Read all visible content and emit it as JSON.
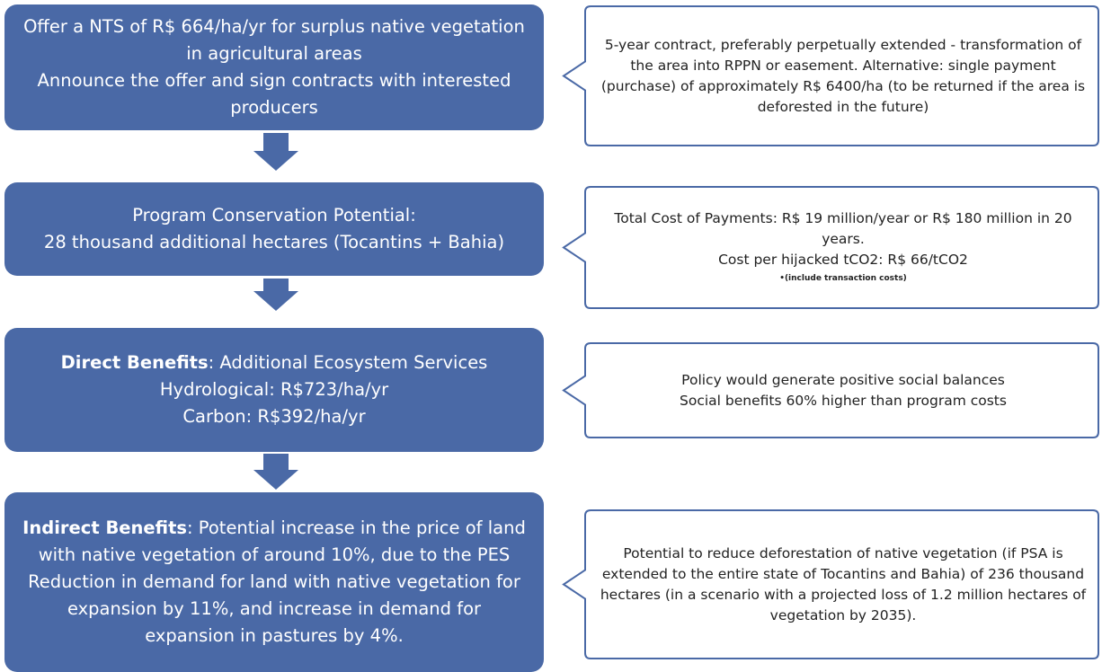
{
  "steps": [
    {
      "lines": [
        "Offer a NTS of R$ 664/ha/yr for surplus native vegetation in agricultural areas",
        "Announce the offer and sign contracts with interested producers"
      ]
    },
    {
      "lines": [
        "Program Conservation Potential:",
        "28 thousand additional hectares (Tocantins + Bahia)"
      ]
    },
    {
      "lines": [
        {
          "label": "Direct Benefits",
          "text": ": Additional Ecosystem Services"
        },
        "Hydrological: R$723/ha/yr",
        "Carbon: R$392/ha/yr"
      ]
    },
    {
      "lines": [
        {
          "label": "Indirect Benefits",
          "text": ": Potential increase in the price of land with native vegetation of around 10%, due to the PES"
        },
        "Reduction in demand for land with native vegetation for expansion by 11%, and increase in demand for expansion in pastures by 4%."
      ]
    }
  ],
  "notes": [
    {
      "lines": [
        "5-year contract, preferably perpetually extended - transformation of the area into RPPN or easement. Alternative: single payment (purchase) of approximately R$ 6400/ha (to be returned if the area is deforested in the future)"
      ]
    },
    {
      "lines": [
        "Total Cost of Payments: R$ 19 million/year or R$ 180 million in 20 years.",
        "Cost per hijacked tCO2: R$ 66/tCO2"
      ],
      "footnote": "•(include transaction costs)"
    },
    {
      "lines": [
        "Policy would generate positive social balances",
        "Social benefits 60% higher than program costs"
      ]
    },
    {
      "lines": [
        "Potential to reduce deforestation of native vegetation (if PSA is extended to the entire state of Tocantins and Bahia) of 236 thousand hectares (in a scenario with a projected loss of 1.2 million hectares of vegetation by 2035)."
      ]
    }
  ]
}
